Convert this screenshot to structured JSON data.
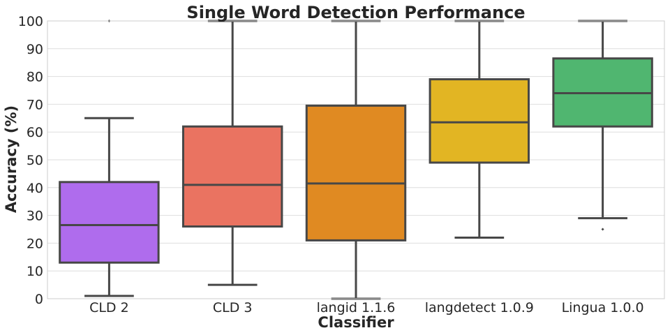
{
  "chart_data": {
    "type": "box",
    "title": "Single Word Detection Performance",
    "xlabel": "Classifier",
    "ylabel": "Accuracy (%)",
    "ylim": [
      0,
      100
    ],
    "yticks": [
      0,
      10,
      20,
      30,
      40,
      50,
      60,
      70,
      80,
      90,
      100
    ],
    "grid": true,
    "categories": [
      "CLD 2",
      "CLD 3",
      "langid 1.1.6",
      "langdetect 1.0.9",
      "Lingua 1.0.0"
    ],
    "boxes": [
      {
        "category": "CLD 2",
        "whisker_low": 1,
        "q1": 13,
        "median": 26.5,
        "q3": 42,
        "whisker_high": 65,
        "outliers": [
          100
        ],
        "color": "#af6ced"
      },
      {
        "category": "CLD 3",
        "whisker_low": 5,
        "q1": 26,
        "median": 41,
        "q3": 62,
        "whisker_high": 100,
        "outliers": [],
        "color": "#ea7361"
      },
      {
        "category": "langid 1.1.6",
        "whisker_low": 0,
        "q1": 21,
        "median": 41.5,
        "q3": 69.5,
        "whisker_high": 100,
        "outliers": [],
        "color": "#e08a22"
      },
      {
        "category": "langdetect 1.0.9",
        "whisker_low": 22,
        "q1": 49,
        "median": 63.5,
        "q3": 79,
        "whisker_high": 100,
        "outliers": [],
        "color": "#e2b523"
      },
      {
        "category": "Lingua 1.0.0",
        "whisker_low": 29,
        "q1": 62,
        "median": 74,
        "q3": 86.5,
        "whisker_high": 100,
        "outliers": [
          25
        ],
        "color": "#50b670"
      }
    ]
  }
}
